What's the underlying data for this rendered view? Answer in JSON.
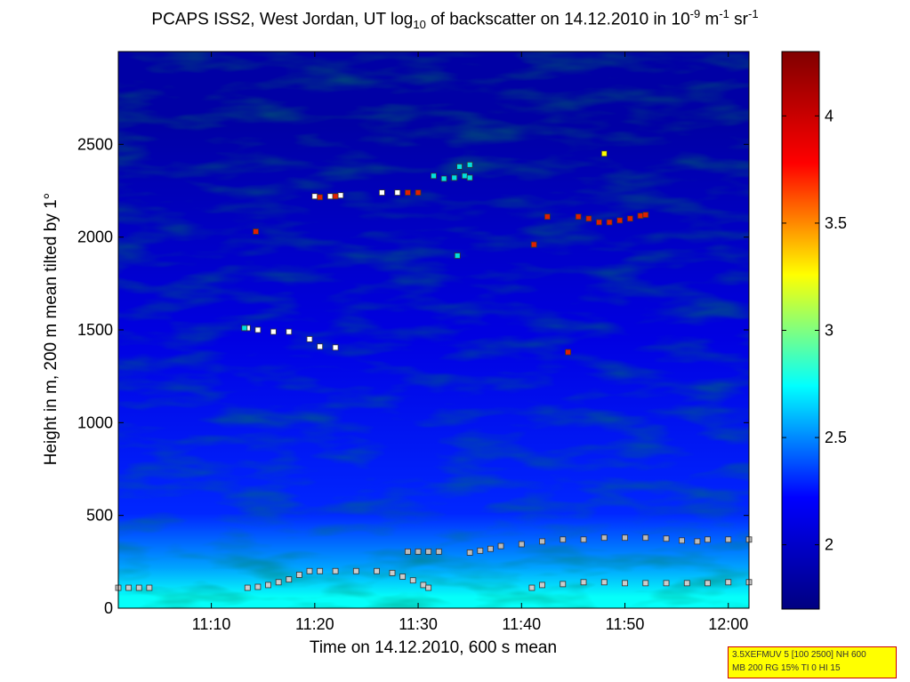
{
  "chart_data": {
    "type": "heatmap",
    "title_parts": [
      "PCAPS ISS2, West Jordan, UT log",
      "10",
      " of backscatter on 14.12.2010 in 10",
      "-9",
      " m",
      "-1",
      " sr",
      "-1"
    ],
    "xlabel": "Time on 14.12.2010, 600 s mean",
    "ylabel": "Height in m, 200 m mean tilted by 1°",
    "x_range_minutes_after_1100": [
      1,
      62
    ],
    "y_range_m": [
      0,
      3000
    ],
    "x_ticks": [
      {
        "value": 10,
        "label": "11:10"
      },
      {
        "value": 20,
        "label": "11:20"
      },
      {
        "value": 30,
        "label": "11:30"
      },
      {
        "value": 40,
        "label": "11:40"
      },
      {
        "value": 50,
        "label": "11:50"
      },
      {
        "value": 60,
        "label": "12:00"
      }
    ],
    "y_ticks": [
      0,
      500,
      1000,
      1500,
      2000,
      2500
    ],
    "colorbar": {
      "range": [
        1.7,
        4.3
      ],
      "ticks": [
        2,
        2.5,
        3,
        3.5,
        4
      ],
      "colormap": [
        "#000080",
        "#0000ff",
        "#00ffff",
        "#ffff00",
        "#ff0000",
        "#800000"
      ]
    },
    "layers": [
      {
        "level": 2.75,
        "from_m": 0,
        "to_m": 120
      },
      {
        "level": 2.55,
        "from_m": 120,
        "to_m": 320
      },
      {
        "level": 2.3,
        "from_m": 320,
        "to_m": 700
      },
      {
        "level": 2.1,
        "from_m": 700,
        "to_m": 2200
      },
      {
        "level": 1.85,
        "from_m": 2200,
        "to_m": 3000
      }
    ],
    "markers": [
      {
        "name": "aerosol layer top",
        "color": "#cccccc",
        "points": [
          [
            1,
            110
          ],
          [
            2,
            110
          ],
          [
            3,
            110
          ],
          [
            4,
            110
          ],
          [
            13.5,
            110
          ],
          [
            14.5,
            115
          ],
          [
            15.5,
            125
          ],
          [
            16.5,
            140
          ],
          [
            17.5,
            155
          ],
          [
            18.5,
            180
          ],
          [
            19.5,
            200
          ],
          [
            20.5,
            200
          ],
          [
            22,
            200
          ],
          [
            24,
            200
          ],
          [
            26,
            200
          ],
          [
            27.5,
            190
          ],
          [
            28.5,
            170
          ],
          [
            29.5,
            150
          ],
          [
            30.5,
            125
          ],
          [
            31,
            110
          ],
          [
            41,
            110
          ],
          [
            42,
            125
          ],
          [
            44,
            130
          ],
          [
            46,
            140
          ],
          [
            48,
            140
          ],
          [
            50,
            135
          ],
          [
            52,
            135
          ],
          [
            54,
            135
          ],
          [
            56,
            135
          ],
          [
            58,
            135
          ],
          [
            60,
            140
          ],
          [
            62,
            140
          ]
        ]
      },
      {
        "name": "mixing layer",
        "color": "#bbbbbb",
        "points": [
          [
            29,
            305
          ],
          [
            30,
            305
          ],
          [
            31,
            305
          ],
          [
            32,
            305
          ],
          [
            35,
            300
          ],
          [
            36,
            310
          ],
          [
            37,
            320
          ],
          [
            38,
            335
          ],
          [
            40,
            345
          ],
          [
            42,
            360
          ],
          [
            44,
            370
          ],
          [
            46,
            370
          ],
          [
            48,
            380
          ],
          [
            50,
            380
          ],
          [
            52,
            380
          ],
          [
            54,
            375
          ],
          [
            55.5,
            365
          ],
          [
            57,
            360
          ],
          [
            58,
            370
          ],
          [
            60,
            370
          ],
          [
            62,
            370
          ]
        ]
      },
      {
        "name": "white markers",
        "color": "#ffffff",
        "points": [
          [
            13.5,
            1510
          ],
          [
            14.5,
            1500
          ],
          [
            16,
            1490
          ],
          [
            17.5,
            1490
          ],
          [
            19.5,
            1450
          ],
          [
            20.5,
            1410
          ],
          [
            22,
            1405
          ],
          [
            20,
            2220
          ],
          [
            21.5,
            2220
          ],
          [
            22.5,
            2225
          ],
          [
            26.5,
            2240
          ],
          [
            28,
            2240
          ]
        ]
      },
      {
        "name": "cyan markers",
        "color": "#00e0e0",
        "points": [
          [
            13.2,
            1510
          ],
          [
            31.5,
            2330
          ],
          [
            32.5,
            2315
          ],
          [
            33.5,
            2320
          ],
          [
            34.5,
            2330
          ],
          [
            35,
            2320
          ],
          [
            33.8,
            1900
          ],
          [
            34,
            2380
          ],
          [
            35,
            2390
          ]
        ]
      },
      {
        "name": "red markers",
        "color": "#e02000",
        "points": [
          [
            14.3,
            2030
          ],
          [
            20.5,
            2215
          ],
          [
            22,
            2220
          ],
          [
            29,
            2240
          ],
          [
            30,
            2240
          ],
          [
            41.2,
            1960
          ],
          [
            42.5,
            2110
          ],
          [
            44.5,
            1380
          ],
          [
            45.5,
            2110
          ],
          [
            46.5,
            2100
          ],
          [
            47.5,
            2080
          ],
          [
            48.5,
            2080
          ],
          [
            49.5,
            2090
          ],
          [
            50.5,
            2100
          ],
          [
            51.5,
            2115
          ],
          [
            52,
            2120
          ]
        ]
      },
      {
        "name": "yellow markers",
        "color": "#ffff00",
        "points": [
          [
            48,
            2450
          ]
        ]
      }
    ]
  },
  "infobox": {
    "line1": "3.5XEFMUV 5 [100 2500] NH 600",
    "line2": "MB 200 RG 15% TI 0 HI 15"
  }
}
